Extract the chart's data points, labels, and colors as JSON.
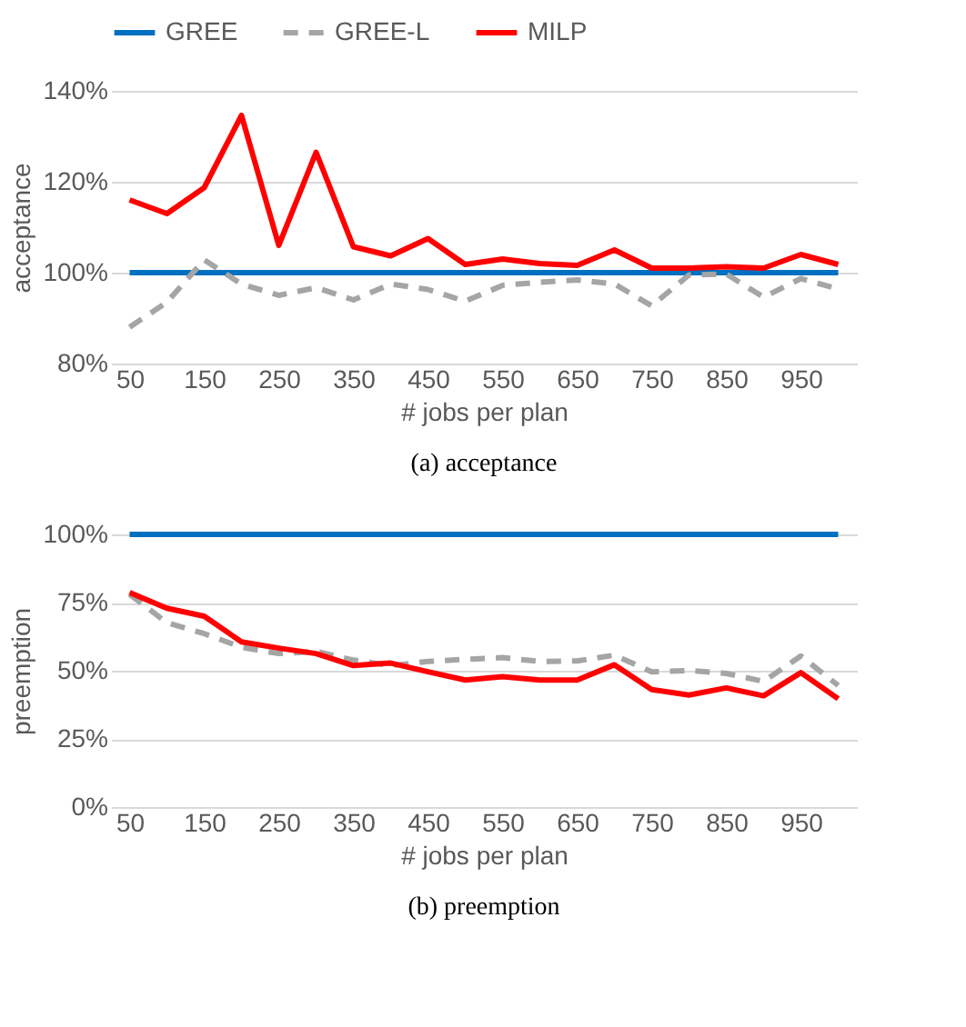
{
  "chart_data": [
    {
      "type": "line",
      "title": "(a)  acceptance",
      "xlabel": "# jobs per plan",
      "ylabel": "acceptance",
      "categories": [
        "50",
        null,
        "150",
        null,
        "250",
        null,
        "350",
        null,
        "450",
        null,
        "550",
        null,
        "650",
        null,
        "750",
        null,
        "850",
        null,
        "950",
        null
      ],
      "series": [
        {
          "name": "GREE",
          "color": "#0070c0",
          "line_style": "solid",
          "values": [
            100,
            100,
            100,
            100,
            100,
            100,
            100,
            100,
            100,
            100,
            100,
            100,
            100,
            100,
            100,
            100,
            100,
            100,
            100,
            100
          ]
        },
        {
          "name": "GREE-L",
          "color": "#a5a5a5",
          "line_style": "dashed",
          "values": [
            88,
            93.5,
            102.8,
            97.5,
            95,
            96.7,
            94,
            97.5,
            96.3,
            93.7,
            97.2,
            97.9,
            98.4,
            97.5,
            92.7,
            99.5,
            99.7,
            94.6,
            98.7,
            96.4
          ]
        },
        {
          "name": "MILP",
          "color": "#ff0000",
          "line_style": "solid",
          "values": [
            116,
            113,
            118.7,
            134.6,
            106,
            126.5,
            105.7,
            103.7,
            107.5,
            101.8,
            103,
            102,
            101.6,
            105,
            101,
            101,
            101.3,
            101,
            104,
            101.8
          ]
        }
      ],
      "ylim": [
        80,
        140
      ],
      "yticks": [
        {
          "value": 80,
          "label": "80%"
        },
        {
          "value": 100,
          "label": "100%"
        },
        {
          "value": 120,
          "label": "120%"
        },
        {
          "value": 140,
          "label": "140%"
        }
      ],
      "grid": "y",
      "legend": "top",
      "marker": "none"
    },
    {
      "type": "line",
      "title": "(b)  preemption",
      "xlabel": "# jobs per plan",
      "ylabel": "preemption",
      "categories": [
        "50",
        null,
        "150",
        null,
        "250",
        null,
        "350",
        null,
        "450",
        null,
        "550",
        null,
        "650",
        null,
        "750",
        null,
        "850",
        null,
        "950",
        null
      ],
      "series": [
        {
          "name": "GREE",
          "color": "#0070c0",
          "line_style": "solid",
          "values": [
            100,
            100,
            100,
            100,
            100,
            100,
            100,
            100,
            100,
            100,
            100,
            100,
            100,
            100,
            100,
            100,
            100,
            100,
            100,
            100
          ]
        },
        {
          "name": "GREE-L",
          "color": "#a5a5a5",
          "line_style": "dashed",
          "values": [
            78,
            67.6,
            63.6,
            58.6,
            56.3,
            57.1,
            53.9,
            51.9,
            53.4,
            54.2,
            54.8,
            53.4,
            53.6,
            55.7,
            49.6,
            50.1,
            49,
            46.1,
            55.4,
            44.6
          ]
        },
        {
          "name": "MILP",
          "color": "#ff0000",
          "line_style": "solid",
          "values": [
            78.7,
            72.9,
            70,
            60.6,
            58.3,
            56.3,
            51.9,
            52.8,
            49.6,
            46.6,
            47.8,
            46.6,
            46.6,
            52.2,
            43.1,
            41.1,
            43.7,
            40.8,
            49.3,
            39.7
          ]
        }
      ],
      "ylim": [
        0,
        100
      ],
      "yticks": [
        {
          "value": 0,
          "label": "0%"
        },
        {
          "value": 25,
          "label": "25%"
        },
        {
          "value": 50,
          "label": "50%"
        },
        {
          "value": 75,
          "label": "75%"
        },
        {
          "value": 100,
          "label": "100%"
        }
      ],
      "grid": "y",
      "legend": "top",
      "marker": "none"
    }
  ]
}
